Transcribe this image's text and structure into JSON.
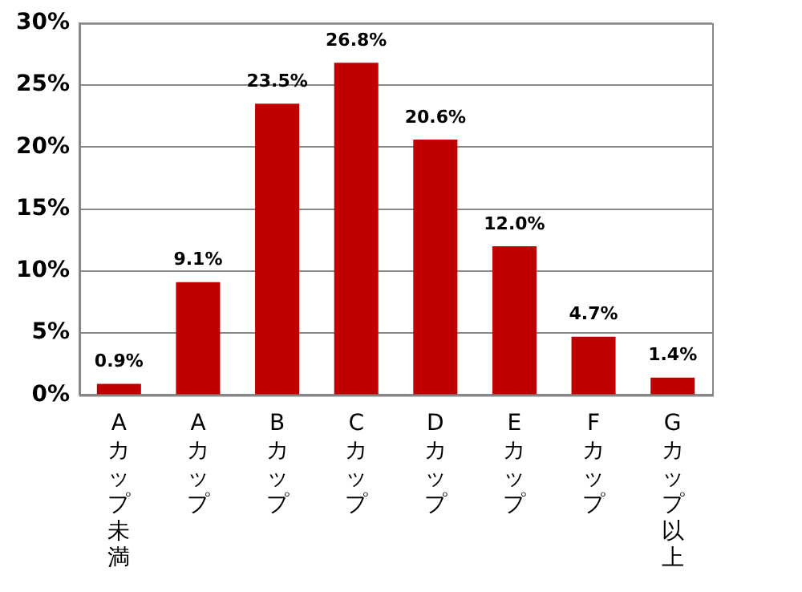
{
  "chart_data": {
    "type": "bar",
    "categories": [
      "Aカップ未満",
      "Aカップ",
      "Bカップ",
      "Cカップ",
      "Dカップ",
      "Eカップ",
      "Fカップ",
      "Gカップ以上"
    ],
    "values": [
      0.9,
      9.1,
      23.5,
      26.8,
      20.6,
      12.0,
      4.7,
      1.4
    ],
    "value_labels": [
      "0.9%",
      "9.1%",
      "23.5%",
      "26.8%",
      "20.6%",
      "12.0%",
      "4.7%",
      "1.4%"
    ],
    "color": "#c00000",
    "ylim": [
      0,
      30
    ],
    "yticks": [
      {
        "value": 0,
        "label": "0%"
      },
      {
        "value": 5,
        "label": "5%"
      },
      {
        "value": 10,
        "label": "10%"
      },
      {
        "value": 15,
        "label": "15%"
      },
      {
        "value": 20,
        "label": "20%"
      },
      {
        "value": 25,
        "label": "25%"
      },
      {
        "value": 30,
        "label": "30%"
      }
    ],
    "grid": "y",
    "legend": false
  }
}
